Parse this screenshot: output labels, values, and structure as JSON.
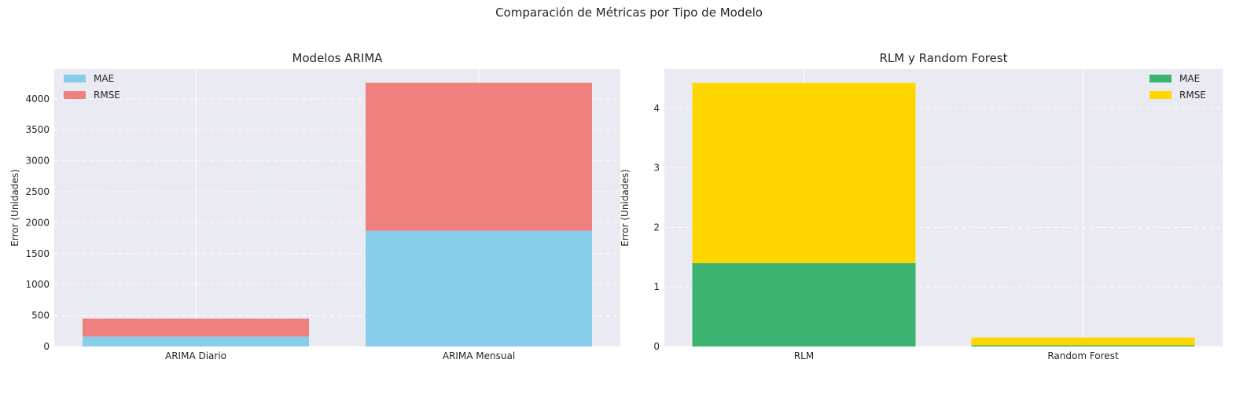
{
  "figure": {
    "suptitle": "Comparación de Métricas por Tipo de Modelo"
  },
  "chart_data": [
    {
      "type": "bar",
      "stacked": true,
      "title": "Modelos ARIMA",
      "xlabel": "",
      "ylabel": "Error (Unidades)",
      "categories": [
        "ARIMA Diario",
        "ARIMA Mensual"
      ],
      "series": [
        {
          "name": "MAE",
          "values": [
            160,
            1870
          ],
          "color": "#87CEEB"
        },
        {
          "name": "RMSE",
          "values": [
            290,
            2390
          ],
          "color": "#F08080"
        }
      ],
      "ylim": [
        0,
        4480
      ],
      "yticks": [
        0,
        500,
        1000,
        1500,
        2000,
        2500,
        3000,
        3500,
        4000
      ],
      "grid": true,
      "legend": "top-left"
    },
    {
      "type": "bar",
      "stacked": true,
      "title": "RLM y Random Forest",
      "xlabel": "",
      "ylabel": "Error (Unidades)",
      "categories": [
        "RLM",
        "Random Forest"
      ],
      "series": [
        {
          "name": "MAE",
          "values": [
            1.4,
            0.02
          ],
          "color": "#3CB371"
        },
        {
          "name": "RMSE",
          "values": [
            3.03,
            0.13
          ],
          "color": "#FFD700"
        }
      ],
      "ylim": [
        0,
        4.66
      ],
      "yticks": [
        0,
        1,
        2,
        3,
        4
      ],
      "grid": true,
      "legend": "top-right"
    }
  ]
}
